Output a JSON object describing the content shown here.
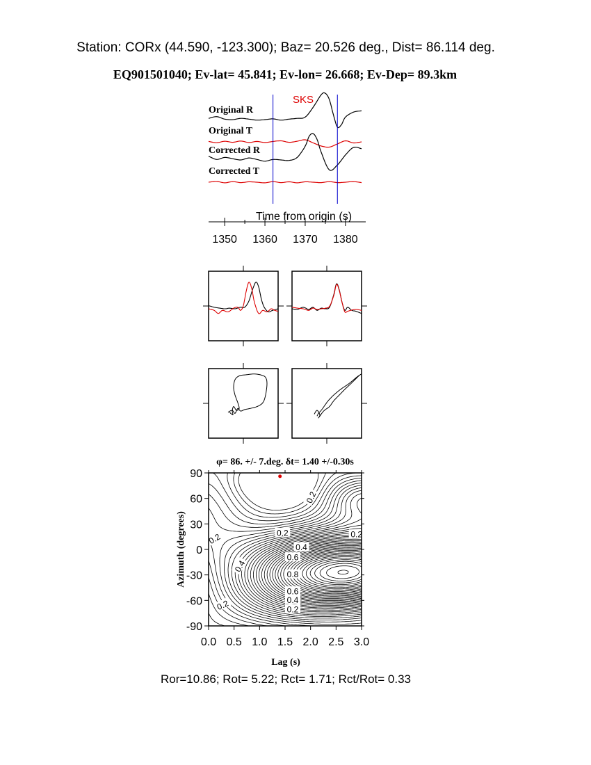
{
  "header": {
    "station_line": "Station: CORx (44.590, -123.300); Baz=   20.526 deg., Dist=   86.114 deg.",
    "event_line": "EQ901501040; Ev-lat=  45.841; Ev-lon=  26.668; Ev-Dep= 89.3km"
  },
  "colors": {
    "black": "#000000",
    "red": "#dd0000",
    "blue": "#0000cc"
  },
  "chart_data": [
    {
      "type": "line",
      "panel": "seismograms",
      "phase_label": "SKS",
      "xlabel": "Time from origin (s)",
      "xlim": [
        1346,
        1384
      ],
      "xticks": [
        1350,
        1360,
        1370,
        1380
      ],
      "xtick_labels": [
        "1350",
        "1360",
        "1370",
        "1380"
      ],
      "window_markers": [
        1362,
        1378
      ],
      "series": [
        {
          "name": "Original R",
          "color": "black",
          "x": [
            1346,
            1348,
            1350,
            1352,
            1354,
            1356,
            1358,
            1360,
            1362,
            1364,
            1366,
            1368,
            1370,
            1372,
            1374,
            1375,
            1376,
            1377,
            1378,
            1379,
            1380,
            1382,
            1384
          ],
          "y": [
            0.05,
            0.12,
            0.02,
            0.0,
            0.05,
            0.02,
            -0.02,
            0.0,
            0.03,
            -0.02,
            0.02,
            0.05,
            0.1,
            0.5,
            1.0,
            1.05,
            0.8,
            0.2,
            -0.3,
            -0.2,
            0.1,
            0.3,
            0.35
          ]
        },
        {
          "name": "Original T",
          "color": "red",
          "x": [
            1346,
            1348,
            1350,
            1352,
            1354,
            1356,
            1358,
            1360,
            1362,
            1364,
            1366,
            1368,
            1370,
            1372,
            1374,
            1376,
            1378,
            1380,
            1382,
            1384
          ],
          "y": [
            0.02,
            -0.04,
            0.03,
            -0.02,
            0.04,
            -0.03,
            0.02,
            -0.03,
            0.02,
            0.05,
            -0.02,
            0.03,
            0.1,
            -0.05,
            -0.2,
            -0.25,
            -0.1,
            0.05,
            -0.05,
            0.0
          ]
        },
        {
          "name": "Corrected R",
          "color": "black",
          "x": [
            1346,
            1348,
            1350,
            1352,
            1354,
            1356,
            1358,
            1360,
            1362,
            1364,
            1366,
            1368,
            1370,
            1371,
            1372,
            1373,
            1374,
            1376,
            1378,
            1380,
            1382,
            1384
          ],
          "y": [
            0.15,
            0.02,
            0.1,
            0.05,
            0.0,
            0.08,
            0.02,
            -0.05,
            0.02,
            0.0,
            -0.02,
            0.1,
            0.55,
            0.95,
            1.05,
            0.8,
            0.3,
            -0.4,
            -0.2,
            0.2,
            0.5,
            0.45
          ]
        },
        {
          "name": "Corrected T",
          "color": "red",
          "x": [
            1346,
            1348,
            1350,
            1352,
            1354,
            1356,
            1358,
            1360,
            1362,
            1364,
            1366,
            1368,
            1370,
            1372,
            1374,
            1376,
            1378,
            1380,
            1382,
            1384
          ],
          "y": [
            0.0,
            0.04,
            -0.03,
            0.03,
            -0.02,
            0.02,
            0.0,
            -0.03,
            0.03,
            -0.02,
            0.02,
            -0.03,
            0.02,
            0.0,
            -0.02,
            0.03,
            -0.02,
            0.0,
            0.03,
            -0.02
          ]
        }
      ]
    },
    {
      "type": "line",
      "panel": "waveform-overlay-original",
      "series": [
        {
          "color": "black",
          "x": [
            0,
            0.08,
            0.16,
            0.24,
            0.3,
            0.38,
            0.46,
            0.52,
            0.58,
            0.63,
            0.68,
            0.72,
            0.76,
            0.8,
            0.86,
            0.92,
            1.0
          ],
          "y": [
            0.1,
            0.05,
            0.02,
            0.0,
            0.02,
            0.0,
            0.05,
            0.05,
            0.25,
            0.6,
            0.85,
            0.7,
            0.3,
            0.05,
            -0.1,
            -0.05,
            0.0
          ]
        },
        {
          "color": "red",
          "x": [
            0,
            0.08,
            0.14,
            0.2,
            0.28,
            0.36,
            0.42,
            0.46,
            0.5,
            0.54,
            0.58,
            0.62,
            0.66,
            0.72,
            0.78,
            0.84,
            0.9,
            0.95,
            1.0
          ],
          "y": [
            0.0,
            -0.05,
            -0.15,
            -0.05,
            -0.1,
            0.02,
            0.05,
            -0.05,
            0.1,
            0.55,
            0.85,
            0.65,
            0.2,
            -0.15,
            -0.05,
            -0.1,
            0.0,
            -0.05,
            -0.08
          ]
        }
      ]
    },
    {
      "type": "line",
      "panel": "waveform-overlay-corrected",
      "series": [
        {
          "color": "black",
          "x": [
            0,
            0.08,
            0.16,
            0.24,
            0.3,
            0.36,
            0.42,
            0.48,
            0.54,
            0.6,
            0.64,
            0.68,
            0.72,
            0.76,
            0.8,
            0.86,
            0.92,
            1.0
          ],
          "y": [
            0.0,
            -0.02,
            0.05,
            -0.02,
            0.05,
            -0.05,
            0.02,
            0.0,
            0.05,
            0.45,
            0.8,
            0.6,
            0.2,
            -0.05,
            0.05,
            -0.05,
            -0.08,
            -0.15
          ]
        },
        {
          "color": "red",
          "x": [
            0,
            0.08,
            0.16,
            0.24,
            0.3,
            0.36,
            0.42,
            0.48,
            0.54,
            0.6,
            0.64,
            0.68,
            0.72,
            0.76,
            0.8,
            0.86,
            0.92,
            1.0
          ],
          "y": [
            0.05,
            0.02,
            0.0,
            -0.05,
            0.02,
            -0.02,
            0.0,
            0.02,
            0.08,
            0.42,
            0.78,
            0.58,
            0.2,
            -0.1,
            -0.08,
            -0.04,
            -0.02,
            -0.05
          ]
        }
      ]
    },
    {
      "type": "line",
      "panel": "particle-motion-original",
      "series": [
        {
          "color": "black",
          "x": [
            0.28,
            0.34,
            0.38,
            0.42,
            0.46,
            0.52,
            0.6,
            0.7,
            0.78,
            0.82,
            0.84,
            0.82,
            0.76,
            0.66,
            0.54,
            0.44,
            0.38,
            0.36,
            0.38,
            0.42,
            0.44,
            0.4,
            0.36,
            0.34,
            0.35,
            0.3
          ],
          "y": [
            -0.05,
            0.0,
            -0.08,
            0.05,
            -0.02,
            0.02,
            0.05,
            0.1,
            0.2,
            0.4,
            0.7,
            0.86,
            0.92,
            0.95,
            0.93,
            0.9,
            0.8,
            0.6,
            0.4,
            0.2,
            0.05,
            0.0,
            0.1,
            -0.02,
            -0.12,
            -0.05
          ]
        }
      ]
    },
    {
      "type": "line",
      "panel": "particle-motion-corrected",
      "series": [
        {
          "color": "black",
          "x": [
            0.32,
            0.36,
            0.4,
            0.38,
            0.44,
            0.48,
            0.54,
            0.6,
            0.68,
            0.76,
            0.86,
            0.96,
            1.0,
            0.94,
            0.82,
            0.7,
            0.6,
            0.52,
            0.46,
            0.42,
            0.38,
            0.36
          ],
          "y": [
            -0.1,
            0.0,
            -0.12,
            -0.2,
            -0.05,
            0.02,
            0.1,
            0.25,
            0.4,
            0.55,
            0.72,
            0.9,
            0.95,
            0.88,
            0.7,
            0.55,
            0.4,
            0.25,
            0.1,
            0.0,
            -0.08,
            -0.15
          ]
        }
      ]
    },
    {
      "type": "contour",
      "panel": "energy-grid-search",
      "title": "φ= 86. +/- 7.deg.  δt= 1.40 +/-0.30s",
      "xlabel": "Lag (s)",
      "ylabel": "Azimuth (degrees)",
      "xlim": [
        0,
        3
      ],
      "ylim": [
        -90,
        90
      ],
      "xticks": [
        0.0,
        0.5,
        1.0,
        1.5,
        2.0,
        2.5,
        3.0
      ],
      "xtick_labels": [
        "0.0",
        "0.5",
        "1.0",
        "1.5",
        "2.0",
        "2.5",
        "3.0"
      ],
      "yticks": [
        -90,
        -60,
        -30,
        0,
        30,
        60,
        90
      ],
      "ytick_labels": [
        "-90",
        "-60",
        "-30",
        "0",
        "30",
        "60",
        "90"
      ],
      "best_fit": {
        "lag": 1.4,
        "azimuth": 86
      },
      "contour_labels": [
        {
          "text": "0.2",
          "lag": 2.02,
          "azimuth": 61,
          "rotate": -65
        },
        {
          "text": "0.2",
          "lag": 0.12,
          "azimuth": 12,
          "rotate": -30
        },
        {
          "text": "0.2",
          "lag": 1.45,
          "azimuth": 19,
          "rotate": 0
        },
        {
          "text": "0.2",
          "lag": 2.9,
          "azimuth": 17,
          "rotate": 0
        },
        {
          "text": "0.4",
          "lag": 1.82,
          "azimuth": 2,
          "rotate": 0
        },
        {
          "text": "0.6",
          "lag": 1.65,
          "azimuth": -10,
          "rotate": 0
        },
        {
          "text": "0.4",
          "lag": 0.62,
          "azimuth": -20,
          "rotate": -60
        },
        {
          "text": "0.8",
          "lag": 1.65,
          "azimuth": -30,
          "rotate": 0
        },
        {
          "text": "0.6",
          "lag": 1.65,
          "azimuth": -50,
          "rotate": 0
        },
        {
          "text": "0.4",
          "lag": 1.65,
          "azimuth": -60,
          "rotate": 0
        },
        {
          "text": "0.2",
          "lag": 1.65,
          "azimuth": -71,
          "rotate": 0
        },
        {
          "text": "0.2",
          "lag": 0.28,
          "azimuth": -66,
          "rotate": -25
        }
      ]
    }
  ],
  "footer": {
    "ratios_line": "Ror=10.86; Rot= 5.22; Rct= 1.71; Rct/Rot= 0.33"
  }
}
